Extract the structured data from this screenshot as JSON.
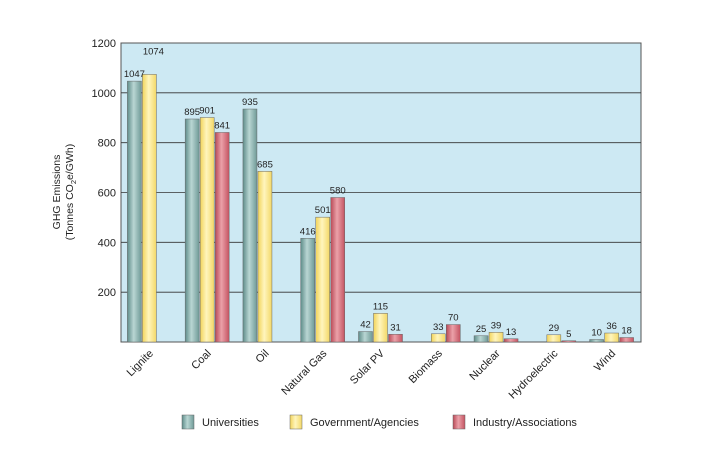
{
  "chart_data": {
    "type": "bar",
    "ylabel_line1": "GHG Emissions",
    "ylabel_line2_pre": "(Tonnes CO",
    "ylabel_line2_sub": "2",
    "ylabel_line2_post": "e/GWh)",
    "ylim": [
      0,
      1200
    ],
    "yticks": [
      200,
      400,
      600,
      800,
      1000,
      1200
    ],
    "grid": true,
    "legend_position": "bottom",
    "categories": [
      "Lignite",
      "Coal",
      "Oil",
      "Natural Gas",
      "Solar PV",
      "Biomass",
      "Nuclear",
      "Hydroelectric",
      "Wind"
    ],
    "series": [
      {
        "name": "Universities",
        "values": [
          1047,
          895,
          935,
          416,
          42,
          null,
          25,
          null,
          10
        ],
        "color": "#8fb8b5"
      },
      {
        "name": "Government/Agencies",
        "values": [
          1074,
          901,
          685,
          501,
          115,
          33,
          39,
          29,
          36
        ],
        "color": "#fbe98a"
      },
      {
        "name": "Industry/Associations",
        "values": [
          null,
          841,
          null,
          580,
          31,
          70,
          13,
          5,
          18
        ],
        "color": "#d9707c"
      }
    ]
  }
}
